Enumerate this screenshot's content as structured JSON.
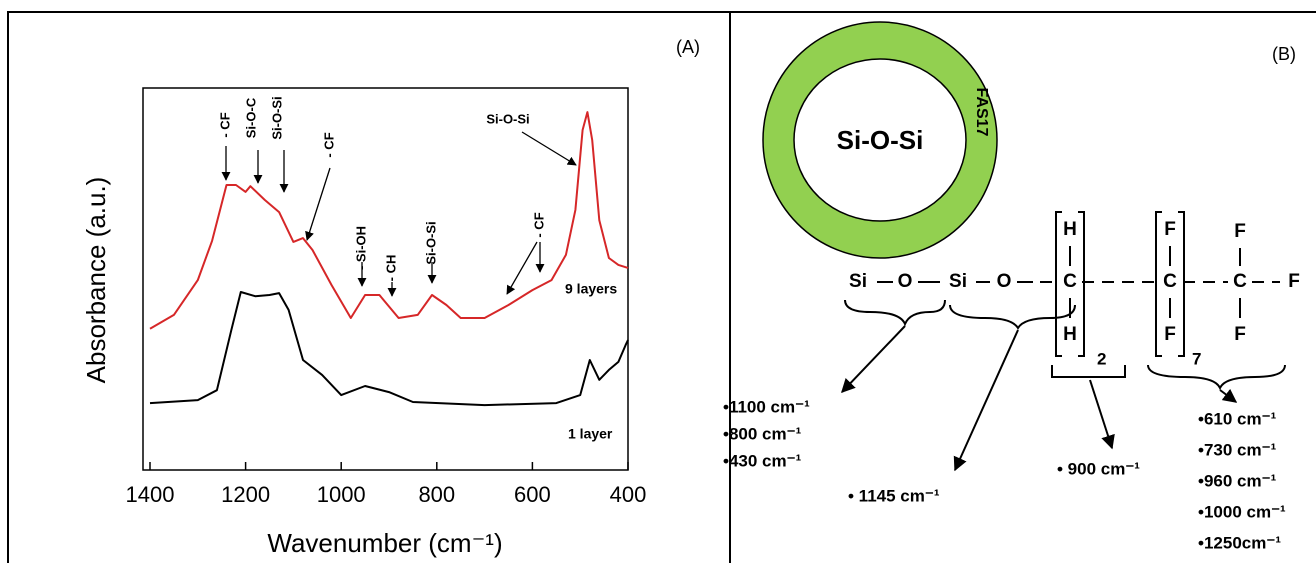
{
  "chart_data": {
    "type": "line",
    "label": "(A)",
    "xlabel": "Wavenumber (cm⁻¹)",
    "ylabel": "Absorbance (a.u.)",
    "xlim": [
      1400,
      400
    ],
    "xticks": [
      1400,
      1200,
      1000,
      800,
      600,
      400
    ],
    "ylim": [
      0,
      10
    ],
    "series": [
      {
        "name": "9 layers",
        "color": "#d62728",
        "x": [
          1400,
          1350,
          1300,
          1270,
          1240,
          1220,
          1200,
          1190,
          1160,
          1130,
          1100,
          1080,
          1060,
          1020,
          980,
          950,
          920,
          880,
          840,
          810,
          780,
          750,
          700,
          650,
          600,
          560,
          530,
          510,
          495,
          485,
          475,
          460,
          440,
          420,
          400
        ],
        "values": [
          3.7,
          4.06,
          4.97,
          6.0,
          7.46,
          7.46,
          7.28,
          7.43,
          7.07,
          6.75,
          5.97,
          6.07,
          5.76,
          4.84,
          3.98,
          4.58,
          4.58,
          3.98,
          4.06,
          4.58,
          4.32,
          3.98,
          3.98,
          4.32,
          4.71,
          4.97,
          5.63,
          6.81,
          8.9,
          9.37,
          8.64,
          6.54,
          5.55,
          5.37,
          5.29
        ]
      },
      {
        "name": "1 layer",
        "color": "#000000",
        "x": [
          1400,
          1300,
          1260,
          1230,
          1210,
          1180,
          1150,
          1130,
          1110,
          1080,
          1040,
          1000,
          950,
          900,
          850,
          700,
          550,
          500,
          480,
          460,
          440,
          420,
          405,
          400
        ],
        "values": [
          1.75,
          1.83,
          2.09,
          3.66,
          4.66,
          4.55,
          4.58,
          4.63,
          4.19,
          2.88,
          2.49,
          1.96,
          2.2,
          2.04,
          1.78,
          1.7,
          1.75,
          1.96,
          2.88,
          2.36,
          2.62,
          2.83,
          3.27,
          3.4
        ]
      }
    ],
    "annotations": [
      "- CF",
      "Si-O-C",
      "Si-O-Si",
      "- CF",
      "- Si-OH",
      "- CH",
      "Si-O-Si",
      "- CF",
      "Si-O-Si"
    ]
  },
  "diagram": {
    "label": "(B)",
    "core": "Si-O-Si",
    "shell": "FAS17",
    "atoms": [
      "Si",
      "O",
      "Si",
      "O",
      "H",
      "C",
      "H",
      "F",
      "C",
      "F",
      "F",
      "C",
      "F",
      "F"
    ],
    "subscripts": [
      "2",
      "7"
    ],
    "bond_groups": [
      [
        "•1100 cm⁻¹",
        "•800 cm⁻¹",
        "•430 cm⁻¹"
      ],
      [
        "• 1145 cm⁻¹"
      ],
      [
        "• 900 cm⁻¹"
      ],
      [
        "•610 cm⁻¹",
        "•730 cm⁻¹",
        "•960 cm⁻¹",
        "•1000 cm⁻¹",
        "•1250cm⁻¹"
      ]
    ]
  }
}
